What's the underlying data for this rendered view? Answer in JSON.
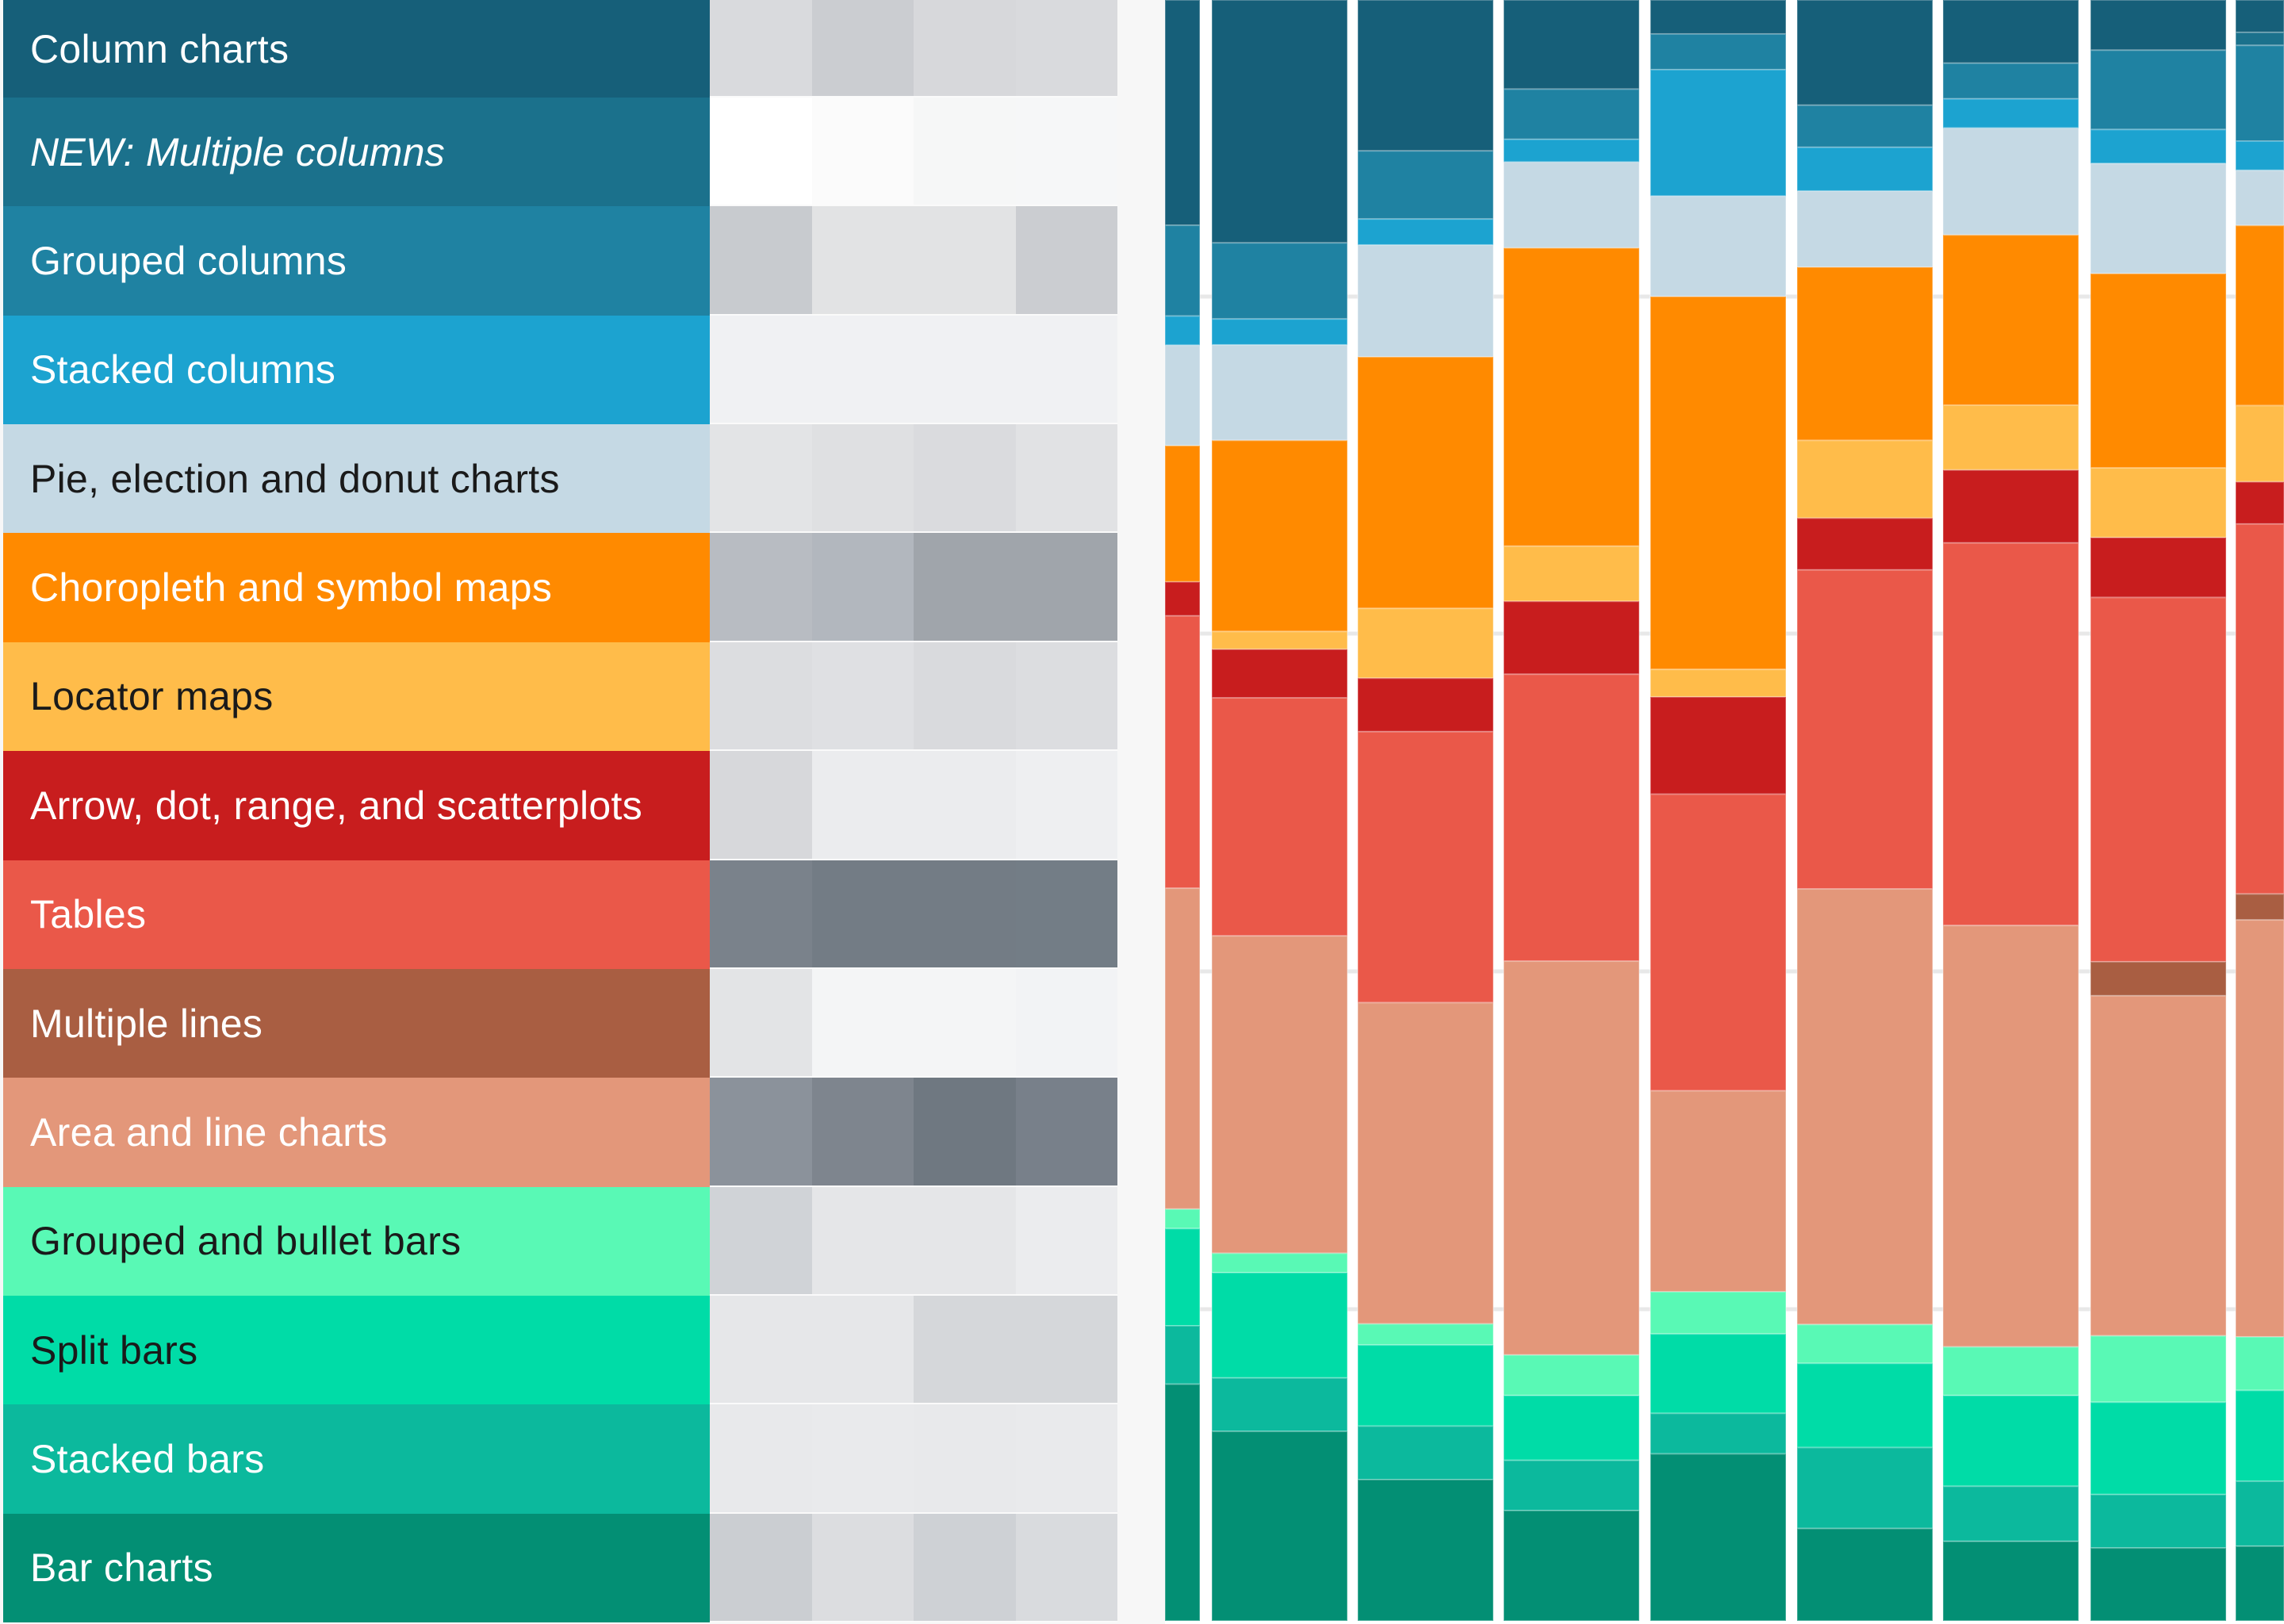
{
  "legend": [
    {
      "label": "Column charts",
      "color": "#165f79",
      "text_color": "#ffffff",
      "italic": false
    },
    {
      "label": "NEW: Multiple columns",
      "color": "#1b718c",
      "text_color": "#ffffff",
      "italic": true
    },
    {
      "label": "Grouped columns",
      "color": "#1f82a2",
      "text_color": "#ffffff",
      "italic": false
    },
    {
      "label": "Stacked columns",
      "color": "#1ca3d0",
      "text_color": "#ffffff",
      "italic": false
    },
    {
      "label": "Pie, election and donut charts",
      "color": "#c5d9e4",
      "text_color": "#1a1a1a",
      "italic": false
    },
    {
      "label": "Choropleth and symbol maps",
      "color": "#ff8a00",
      "text_color": "#ffffff",
      "italic": false
    },
    {
      "label": "Locator maps",
      "color": "#ffbc4a",
      "text_color": "#1a1a1a",
      "italic": false
    },
    {
      "label": "Arrow, dot, range, and scatterplots",
      "color": "#c81d1e",
      "text_color": "#ffffff",
      "italic": false
    },
    {
      "label": "Tables",
      "color": "#ea5849",
      "text_color": "#ffffff",
      "italic": false
    },
    {
      "label": "Multiple lines",
      "color": "#a95e42",
      "text_color": "#ffffff",
      "italic": false
    },
    {
      "label": "Area and line charts",
      "color": "#e3977a",
      "text_color": "#ffffff",
      "italic": false
    },
    {
      "label": "Grouped and bullet bars",
      "color": "#59f9b5",
      "text_color": "#1a1a1a",
      "italic": false
    },
    {
      "label": "Split bars",
      "color": "#00dca7",
      "text_color": "#1a1a1a",
      "italic": false
    },
    {
      "label": "Stacked bars",
      "color": "#0cb99d",
      "text_color": "#ffffff",
      "italic": false
    },
    {
      "label": "Bar charts",
      "color": "#038f74",
      "text_color": "#ffffff",
      "italic": false
    }
  ],
  "heatmap": [
    [
      "#d9dadd",
      "#cbcdd1",
      "#d7d8db",
      "#d9dadd"
    ],
    [
      "#ffffff",
      "#fbfbfb",
      "#f6f7f7",
      "#f6f7f8"
    ],
    [
      "#c8cbcf",
      "#e2e3e4",
      "#e2e3e4",
      "#cbcdd1"
    ],
    [
      "#f0f1f3",
      "#f0f1f3",
      "#f0f1f3",
      "#f0f1f3"
    ],
    [
      "#e3e4e6",
      "#dfe0e2",
      "#dadbde",
      "#e1e2e4"
    ],
    [
      "#b8bcc2",
      "#b2b7be",
      "#a0a5ab",
      "#a0a5ab"
    ],
    [
      "#dcdde0",
      "#dfe0e3",
      "#d9dadd",
      "#dcdde0"
    ],
    [
      "#d7d8db",
      "#ebecee",
      "#ebecee",
      "#eeeff1"
    ],
    [
      "#7a828b",
      "#737c85",
      "#737c85",
      "#737d86"
    ],
    [
      "#e3e4e6",
      "#f4f5f6",
      "#f4f5f6",
      "#f2f3f5"
    ],
    [
      "#8b929b",
      "#7e858e",
      "#6f7881",
      "#78808a"
    ],
    [
      "#d0d3d7",
      "#e5e6e8",
      "#e5e6e8",
      "#ebecee"
    ],
    [
      "#e6e7e9",
      "#e6e7e9",
      "#d5d7da",
      "#d5d7da"
    ],
    [
      "#e8e9eb",
      "#e9eaec",
      "#e8e9eb",
      "#e9eaec"
    ],
    [
      "#cbced2",
      "#dcdde0",
      "#ced1d5",
      "#d9dbde"
    ]
  ],
  "chart_data": {
    "type": "bar",
    "stacked": true,
    "normalized": true,
    "ylim": [
      0,
      100
    ],
    "grid": true,
    "legend": "left",
    "series": [
      {
        "name": "Column charts",
        "color": "#165f79",
        "values": [
          13.9,
          15.0,
          9.3,
          5.5,
          2.1,
          6.5,
          3.9,
          3.1,
          2.0
        ]
      },
      {
        "name": "NEW: Multiple columns",
        "color": "#1b718c",
        "values": [
          0,
          0,
          0,
          0,
          0,
          0,
          0,
          0,
          0.8
        ]
      },
      {
        "name": "Grouped columns",
        "color": "#1f82a2",
        "values": [
          5.6,
          4.7,
          4.2,
          3.1,
          2.2,
          2.6,
          2.2,
          4.9,
          5.9
        ]
      },
      {
        "name": "Stacked columns",
        "color": "#1ca3d0",
        "values": [
          1.8,
          1.6,
          1.6,
          1.4,
          7.8,
          2.7,
          1.8,
          2.1,
          1.8
        ]
      },
      {
        "name": "Pie, election and donut charts",
        "color": "#c5d9e4",
        "values": [
          6.2,
          5.9,
          6.9,
          5.3,
          6.2,
          4.7,
          6.6,
          6.8,
          3.4
        ]
      },
      {
        "name": "Choropleth and symbol maps",
        "color": "#ff8a00",
        "values": [
          8.4,
          11.8,
          15.5,
          18.4,
          23.0,
          10.7,
          10.5,
          12.0,
          11.1
        ]
      },
      {
        "name": "Locator maps",
        "color": "#ffbc4a",
        "values": [
          0,
          1.1,
          4.3,
          3.4,
          1.7,
          4.8,
          4.0,
          4.3,
          4.7
        ]
      },
      {
        "name": "Arrow, dot, range, and scatterplots",
        "color": "#c81d1e",
        "values": [
          2.1,
          3.0,
          3.3,
          4.5,
          6.0,
          3.2,
          4.5,
          3.7,
          2.6
        ]
      },
      {
        "name": "Tables",
        "color": "#ea5849",
        "values": [
          16.8,
          14.7,
          16.7,
          17.7,
          18.3,
          19.7,
          23.6,
          22.5,
          22.8
        ]
      },
      {
        "name": "Multiple lines",
        "color": "#a95e42",
        "values": [
          0,
          0,
          0,
          0,
          0,
          0,
          0,
          2.1,
          1.6
        ]
      },
      {
        "name": "Area and line charts",
        "color": "#e3977a",
        "values": [
          19.8,
          19.6,
          19.8,
          24.3,
          12.4,
          26.9,
          26.0,
          21.0,
          25.7
        ]
      },
      {
        "name": "Grouped and bullet bars",
        "color": "#59f9b5",
        "values": [
          1.2,
          1.2,
          1.3,
          2.5,
          2.6,
          2.4,
          3.0,
          4.1,
          3.3
        ]
      },
      {
        "name": "Split bars",
        "color": "#00dca7",
        "values": [
          6.0,
          6.5,
          5.0,
          4.0,
          4.9,
          5.2,
          5.6,
          5.7,
          5.6
        ]
      },
      {
        "name": "Stacked bars",
        "color": "#0cb99d",
        "values": [
          3.6,
          3.3,
          3.3,
          3.1,
          2.5,
          5.0,
          3.4,
          3.3,
          4.0
        ]
      },
      {
        "name": "Bar charts",
        "color": "#038f74",
        "values": [
          14.6,
          11.7,
          8.7,
          6.8,
          10.3,
          5.7,
          4.9,
          4.5,
          4.6
        ]
      }
    ]
  }
}
